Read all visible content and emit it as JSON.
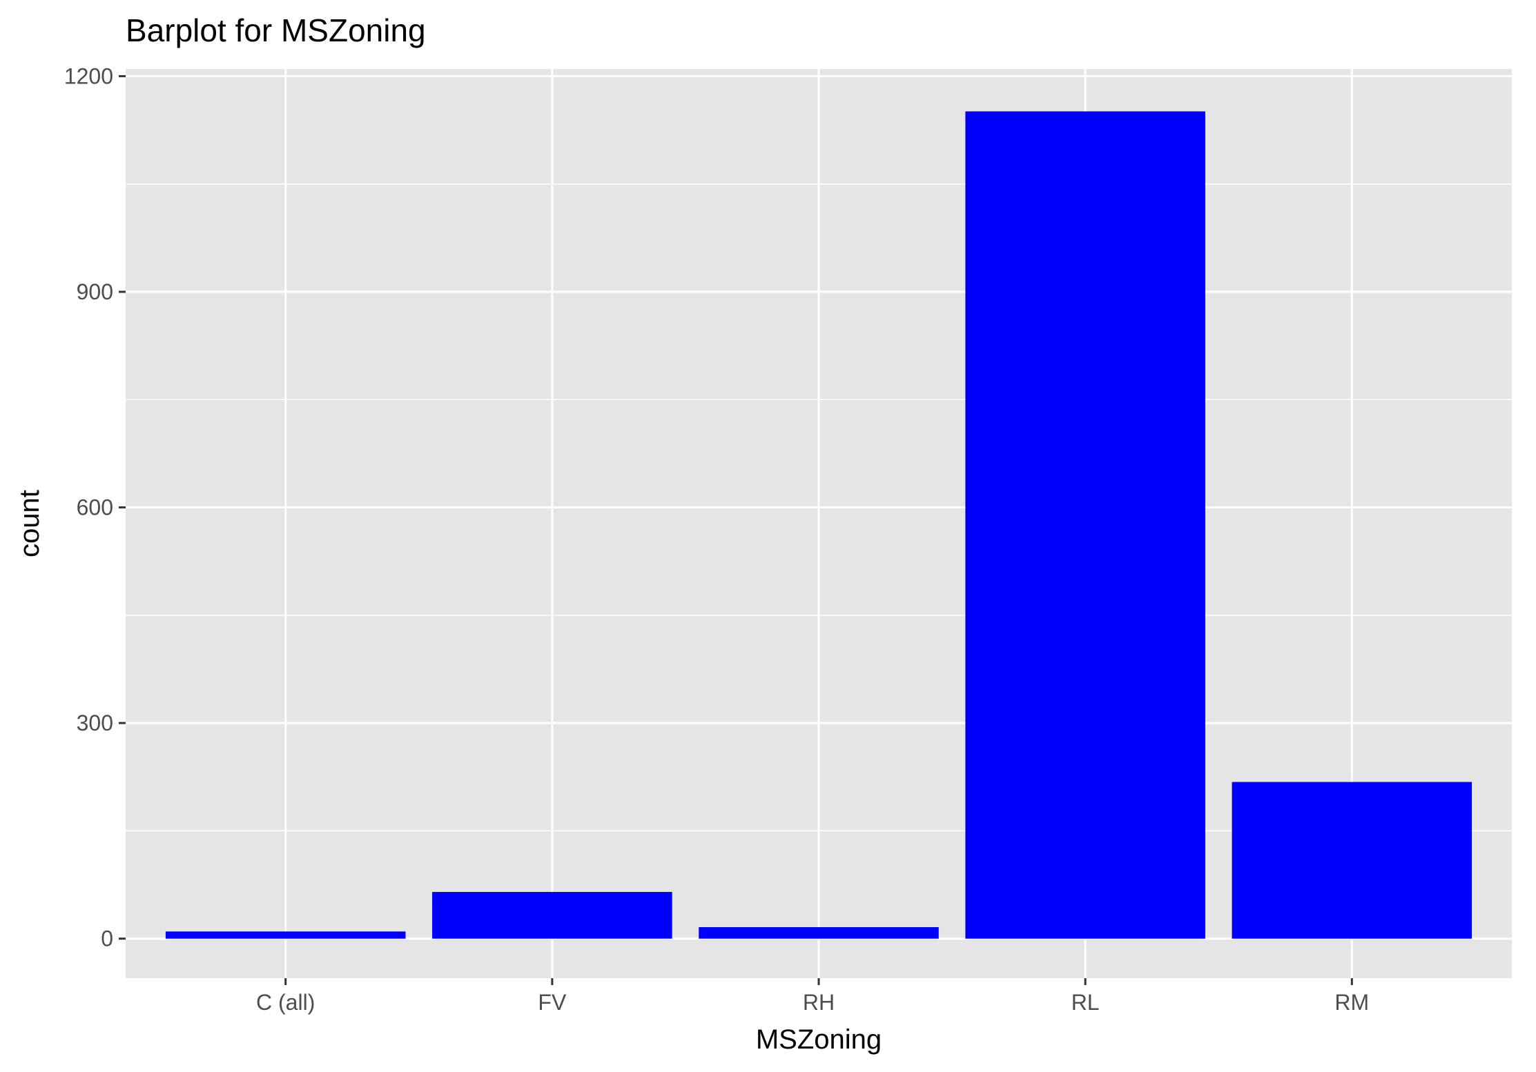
{
  "chart_data": {
    "type": "bar",
    "title": "Barplot for MSZoning",
    "xlabel": "MSZoning",
    "ylabel": "count",
    "categories": [
      "C (all)",
      "FV",
      "RH",
      "RL",
      "RM"
    ],
    "values": [
      10,
      65,
      16,
      1151,
      218
    ],
    "ylim": [
      -55,
      1210
    ],
    "yticks": [
      0,
      300,
      600,
      900,
      1200
    ],
    "yminor": [
      150,
      450,
      750,
      1050
    ],
    "grid": true,
    "legend": "none",
    "colors": {
      "bar": "#0000ff",
      "panel": "#e5e5e5",
      "grid": "#ffffff",
      "tick": "#333333"
    }
  }
}
